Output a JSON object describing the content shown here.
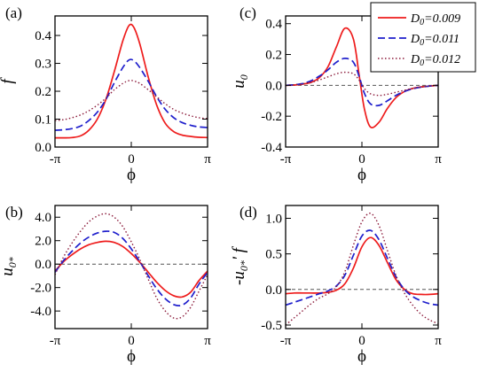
{
  "chart_data": [
    {
      "panel": "(a)",
      "type": "line",
      "xlabel": "ϕ",
      "ylabel": "f",
      "xlim": [
        -3.1416,
        3.1416
      ],
      "ylim": [
        0.0,
        0.47
      ],
      "xticks": [
        -3.1416,
        0,
        3.1416
      ],
      "xtick_labels": [
        "-π",
        "0",
        "π"
      ],
      "yticks": [
        0.0,
        0.1,
        0.2,
        0.3,
        0.4
      ],
      "ytick_labels": [
        "0.0",
        "0.1",
        "0.2",
        "0.3",
        "0.4"
      ],
      "zero_line": false,
      "x": [
        -3.14,
        -2.79,
        -2.44,
        -2.09,
        -1.75,
        -1.4,
        -1.05,
        -0.7,
        -0.35,
        -0.1,
        0.1,
        0.35,
        0.7,
        1.05,
        1.4,
        1.75,
        2.09,
        2.44,
        2.79,
        3.14
      ],
      "series": [
        {
          "values": [
            0.033,
            0.033,
            0.034,
            0.04,
            0.06,
            0.1,
            0.17,
            0.27,
            0.38,
            0.435,
            0.43,
            0.37,
            0.25,
            0.15,
            0.085,
            0.055,
            0.043,
            0.038,
            0.035,
            0.034
          ]
        },
        {
          "values": [
            0.06,
            0.062,
            0.066,
            0.075,
            0.095,
            0.125,
            0.17,
            0.23,
            0.285,
            0.312,
            0.31,
            0.285,
            0.235,
            0.18,
            0.135,
            0.105,
            0.088,
            0.078,
            0.072,
            0.07
          ]
        },
        {
          "values": [
            0.095,
            0.098,
            0.105,
            0.115,
            0.13,
            0.15,
            0.175,
            0.205,
            0.228,
            0.238,
            0.237,
            0.228,
            0.205,
            0.18,
            0.155,
            0.135,
            0.122,
            0.112,
            0.105,
            0.102
          ]
        }
      ]
    },
    {
      "panel": "(c)",
      "type": "line",
      "xlabel": "ϕ",
      "ylabel": "u0",
      "ylabel_main": "u",
      "ylabel_sub": "0",
      "xlim": [
        -3.1416,
        3.1416
      ],
      "ylim": [
        -0.4,
        0.45
      ],
      "xticks": [
        -3.1416,
        0,
        3.1416
      ],
      "xtick_labels": [
        "-π",
        "0",
        "π"
      ],
      "yticks": [
        -0.4,
        -0.2,
        0.0,
        0.2,
        0.4
      ],
      "ytick_labels": [
        "-0.4",
        "-0.2",
        "0.0",
        "0.2",
        "0.4"
      ],
      "zero_line": true,
      "x": [
        -3.14,
        -2.79,
        -2.44,
        -2.09,
        -1.75,
        -1.4,
        -1.05,
        -0.7,
        -0.35,
        -0.1,
        0.1,
        0.35,
        0.7,
        1.05,
        1.4,
        1.75,
        2.09,
        2.44,
        2.79,
        3.14
      ],
      "series": [
        {
          "values": [
            0.0,
            0.002,
            0.008,
            0.02,
            0.05,
            0.12,
            0.25,
            0.37,
            0.3,
            0.05,
            -0.15,
            -0.27,
            -0.24,
            -0.15,
            -0.08,
            -0.04,
            -0.02,
            -0.01,
            -0.005,
            0.0
          ]
        },
        {
          "values": [
            0.0,
            0.004,
            0.012,
            0.03,
            0.06,
            0.1,
            0.15,
            0.175,
            0.15,
            0.05,
            -0.05,
            -0.12,
            -0.13,
            -0.1,
            -0.065,
            -0.04,
            -0.022,
            -0.012,
            -0.005,
            0.0
          ]
        },
        {
          "values": [
            0.0,
            0.004,
            0.01,
            0.02,
            0.035,
            0.055,
            0.075,
            0.085,
            0.075,
            0.03,
            -0.02,
            -0.055,
            -0.065,
            -0.058,
            -0.045,
            -0.032,
            -0.02,
            -0.012,
            -0.005,
            0.0
          ]
        }
      ]
    },
    {
      "panel": "(b)",
      "type": "line",
      "xlabel": "ϕ",
      "ylabel": "u0*",
      "ylabel_main": "u",
      "ylabel_sub": "0*",
      "xlim": [
        -3.1416,
        3.1416
      ],
      "ylim": [
        -5.5,
        5.0
      ],
      "xticks": [
        -3.1416,
        0,
        3.1416
      ],
      "xtick_labels": [
        "-π",
        "0",
        "π"
      ],
      "yticks": [
        -4.0,
        -2.0,
        0.0,
        2.0,
        4.0
      ],
      "ytick_labels": [
        "-4.0",
        "-2.0",
        "0.0",
        "2.0",
        "4.0"
      ],
      "zero_line": true,
      "x": [
        -3.14,
        -2.79,
        -2.44,
        -2.09,
        -1.75,
        -1.4,
        -1.05,
        -0.7,
        -0.35,
        0.0,
        0.35,
        0.7,
        1.05,
        1.4,
        1.75,
        2.09,
        2.44,
        2.79,
        3.14
      ],
      "series": [
        {
          "values": [
            -0.6,
            0.2,
            0.8,
            1.3,
            1.65,
            1.85,
            1.95,
            1.85,
            1.5,
            0.9,
            0.15,
            -0.7,
            -1.55,
            -2.25,
            -2.7,
            -2.8,
            -2.4,
            -1.4,
            -0.6
          ]
        },
        {
          "values": [
            -0.7,
            0.3,
            1.1,
            1.8,
            2.3,
            2.65,
            2.8,
            2.7,
            2.2,
            1.3,
            0.2,
            -1.0,
            -2.1,
            -2.95,
            -3.45,
            -3.5,
            -2.9,
            -1.7,
            -0.7
          ]
        },
        {
          "values": [
            -0.9,
            0.6,
            1.8,
            2.8,
            3.6,
            4.1,
            4.3,
            4.0,
            3.2,
            1.9,
            0.4,
            -1.3,
            -2.9,
            -4.0,
            -4.6,
            -4.5,
            -3.7,
            -2.3,
            -0.9
          ]
        }
      ]
    },
    {
      "panel": "(d)",
      "type": "line",
      "xlabel": "ϕ",
      "ylabel": "-u0*' f",
      "ylabel_pre": "-u",
      "ylabel_sub": "0*",
      "ylabel_post": "' f",
      "xlim": [
        -3.1416,
        3.1416
      ],
      "ylim": [
        -0.55,
        1.18
      ],
      "xticks": [
        -3.1416,
        0,
        3.1416
      ],
      "xtick_labels": [
        "-π",
        "0",
        "π"
      ],
      "yticks": [
        -0.5,
        0.0,
        0.5,
        1.0
      ],
      "ytick_labels": [
        "-0.5",
        "0.0",
        "0.5",
        "1.0"
      ],
      "zero_line": true,
      "x": [
        -3.14,
        -2.79,
        -2.44,
        -2.09,
        -1.75,
        -1.4,
        -1.05,
        -0.7,
        -0.35,
        0.0,
        0.35,
        0.7,
        1.05,
        1.4,
        1.75,
        2.09,
        2.44,
        2.79,
        3.14
      ],
      "series": [
        {
          "values": [
            -0.06,
            -0.05,
            -0.05,
            -0.05,
            -0.05,
            -0.04,
            -0.01,
            0.08,
            0.3,
            0.6,
            0.73,
            0.62,
            0.38,
            0.14,
            0.0,
            -0.06,
            -0.07,
            -0.07,
            -0.06
          ]
        },
        {
          "values": [
            -0.22,
            -0.18,
            -0.14,
            -0.1,
            -0.06,
            -0.02,
            0.05,
            0.2,
            0.48,
            0.75,
            0.83,
            0.7,
            0.44,
            0.18,
            0.0,
            -0.1,
            -0.16,
            -0.2,
            -0.22
          ]
        },
        {
          "values": [
            -0.5,
            -0.4,
            -0.3,
            -0.2,
            -0.12,
            -0.06,
            0.04,
            0.25,
            0.62,
            0.95,
            1.07,
            0.9,
            0.55,
            0.2,
            -0.05,
            -0.22,
            -0.35,
            -0.43,
            -0.48
          ]
        }
      ]
    }
  ],
  "legend": {
    "placement": "top-right",
    "entries": [
      {
        "prefix": "D",
        "sub": "0",
        "suffix": "=0.009",
        "color": "#ee1c1c",
        "style": "solid"
      },
      {
        "prefix": "D",
        "sub": "0",
        "suffix": "=0.011",
        "color": "#1f1fcc",
        "style": "dashed"
      },
      {
        "prefix": "D",
        "sub": "0",
        "suffix": "=0.012",
        "color": "#8b1a3a",
        "style": "dotted"
      }
    ]
  },
  "colors": {
    "series1": "#ee1c1c",
    "series2": "#1f1fcc",
    "series3": "#8b1a3a",
    "zero_line": "#555555"
  }
}
